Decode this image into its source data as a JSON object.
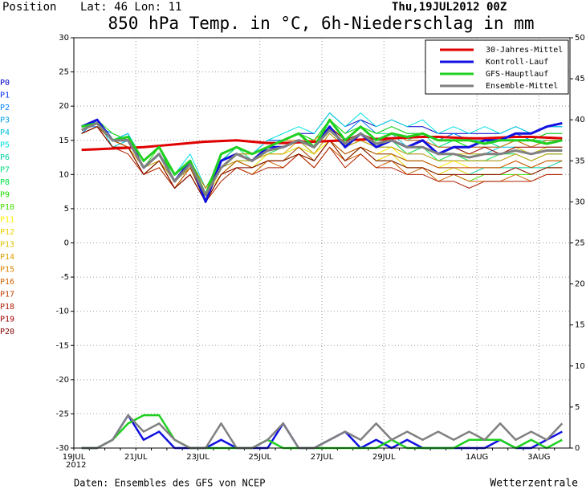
{
  "chart_data": {
    "type": "line",
    "position_label": "Position",
    "location": "Lat: 46  Lon: 11",
    "run": "Thu,19JUL2012 00Z",
    "title": "850 hPa Temp. in °C, 6h-Niederschlag in mm",
    "source": "Daten: Ensembles des GFS von NCEP",
    "brand": "Wetterzentrale",
    "year_label": "2012",
    "categories": [
      "19JUL",
      null,
      null,
      null,
      "21JUL",
      null,
      null,
      null,
      "23JUL",
      null,
      null,
      null,
      "25JUL",
      null,
      null,
      null,
      "27JUL",
      null,
      null,
      null,
      "29JUL",
      null,
      null,
      null,
      null,
      null,
      "1AUG",
      null,
      null,
      null,
      "3AUG",
      null
    ],
    "ylim": [
      -30,
      30
    ],
    "yticks": [
      -30,
      -25,
      -20,
      -15,
      -10,
      -5,
      0,
      5,
      10,
      15,
      20,
      25,
      30
    ],
    "y2lim": [
      0,
      50
    ],
    "y2ticks": [
      0,
      5,
      10,
      15,
      20,
      25,
      30,
      35,
      40,
      45,
      50
    ],
    "grid": true,
    "legend": "top-right",
    "series": [
      {
        "name": "30-Jahres-Mittel",
        "color": "#e00000",
        "values": [
          13.6,
          13.7,
          13.8,
          13.9,
          14.0,
          14.2,
          14.4,
          14.6,
          14.8,
          14.9,
          15.0,
          14.8,
          14.6,
          14.6,
          14.7,
          14.8,
          14.9,
          15.0,
          15.1,
          15.2,
          15.3,
          15.4,
          15.5,
          15.5,
          15.4,
          15.3,
          15.3,
          15.4,
          15.5,
          15.5,
          15.4,
          15.3
        ]
      },
      {
        "name": "Kontroll-Lauf",
        "color": "#1010e0",
        "values": [
          17,
          18,
          15,
          15,
          11,
          13,
          9,
          12,
          6,
          12,
          13,
          12,
          14,
          14,
          15,
          14,
          17,
          14,
          16,
          14,
          15,
          14,
          15,
          13,
          14,
          14,
          15,
          15,
          16,
          16,
          17,
          17.5
        ],
        "precip": [
          0,
          0,
          1,
          4,
          1,
          2,
          0,
          0,
          0,
          1,
          0,
          0,
          0,
          3,
          0,
          0,
          1,
          2,
          0,
          1,
          0,
          1,
          0,
          0,
          0,
          0,
          0,
          1,
          0,
          0,
          1,
          2
        ]
      },
      {
        "name": "GFS-Hauptlauf",
        "color": "#20d020",
        "values": [
          17,
          17.5,
          15,
          15.5,
          12,
          14,
          10,
          12,
          7,
          13,
          14,
          13,
          14,
          15,
          16,
          14,
          18,
          15,
          17,
          15,
          16,
          15.5,
          16,
          15,
          15,
          15,
          14.5,
          15,
          15,
          15,
          14.5,
          15
        ],
        "precip": [
          0,
          0,
          1,
          3,
          4,
          4,
          1,
          0,
          0,
          0,
          0,
          0,
          1,
          0,
          0,
          0,
          0,
          0,
          0,
          0,
          1,
          0,
          0,
          0,
          0,
          1,
          1,
          1,
          0,
          1,
          0,
          1
        ]
      },
      {
        "name": "Ensemble-Mittel",
        "color": "#808080",
        "values": [
          16.5,
          17.5,
          15,
          15,
          11,
          13,
          9,
          11.5,
          7,
          11,
          13,
          12,
          13.5,
          14,
          15,
          14,
          16.5,
          14.5,
          16,
          14.5,
          15,
          14,
          14,
          13,
          13,
          12.5,
          13,
          13,
          13.5,
          13,
          13.5,
          13.5
        ],
        "precip": [
          0,
          0,
          1,
          4,
          2,
          3,
          1,
          0,
          0,
          3,
          0,
          0,
          1,
          3,
          0,
          0,
          1,
          2,
          1,
          3,
          1,
          2,
          1,
          2,
          1,
          2,
          1,
          3,
          1,
          2,
          1,
          3
        ]
      }
    ],
    "members": [
      {
        "name": "P0",
        "color": "#0000c8",
        "values": [
          17,
          18,
          15,
          16,
          11,
          13,
          9,
          12,
          8,
          12,
          14,
          13,
          15,
          15,
          16,
          16,
          19,
          17,
          18,
          17,
          18,
          17,
          17,
          16,
          16,
          16,
          16,
          16,
          17,
          16,
          17,
          17
        ]
      },
      {
        "name": "P1",
        "color": "#0030ff",
        "values": [
          16,
          18,
          15,
          15,
          11,
          13,
          10,
          12,
          7,
          12,
          13,
          12,
          14,
          15,
          16,
          14,
          17,
          15,
          17,
          15,
          16,
          15,
          15,
          14,
          14,
          14,
          14,
          14,
          15,
          14,
          15,
          15
        ]
      },
      {
        "name": "P2",
        "color": "#0080ff",
        "values": [
          17,
          17,
          16,
          15,
          12,
          14,
          9,
          12,
          8,
          12,
          14,
          13,
          15,
          15,
          16,
          15,
          18,
          16,
          18,
          16,
          17,
          16,
          16,
          15,
          16,
          15,
          15,
          15,
          16,
          15,
          16,
          16
        ]
      },
      {
        "name": "P3",
        "color": "#00a0e0",
        "values": [
          16,
          18,
          15,
          14,
          10,
          12,
          9,
          11,
          7,
          11,
          12,
          11,
          13,
          13,
          14,
          13,
          16,
          14,
          15,
          14,
          14,
          13,
          13,
          12,
          12,
          12,
          12,
          12,
          13,
          12,
          13,
          13
        ]
      },
      {
        "name": "P4",
        "color": "#00c0e0",
        "values": [
          17,
          18,
          14,
          15,
          11,
          13,
          9,
          12,
          7,
          11,
          13,
          12,
          14,
          14,
          15,
          14,
          17,
          15,
          16,
          15,
          16,
          14,
          15,
          13,
          14,
          13,
          13,
          14,
          14,
          13,
          14,
          14
        ]
      },
      {
        "name": "P5",
        "color": "#00e0e0",
        "values": [
          17,
          18,
          15,
          16,
          12,
          14,
          10,
          13,
          8,
          12,
          14,
          13,
          15,
          16,
          17,
          16,
          19,
          17,
          19,
          17,
          18,
          17,
          18,
          16,
          17,
          16,
          17,
          16,
          17,
          16,
          17,
          17
        ]
      },
      {
        "name": "P6",
        "color": "#00d0a0",
        "values": [
          16,
          17,
          15,
          14,
          10,
          12,
          8,
          11,
          6,
          10,
          12,
          11,
          12,
          12,
          14,
          12,
          15,
          13,
          14,
          13,
          13,
          12,
          12,
          11,
          11,
          10,
          11,
          11,
          11,
          11,
          11,
          12
        ]
      },
      {
        "name": "P7",
        "color": "#00e080",
        "values": [
          17,
          18,
          15,
          15,
          11,
          13,
          10,
          12,
          7,
          12,
          14,
          12,
          14,
          15,
          16,
          15,
          18,
          16,
          17,
          16,
          16,
          15,
          16,
          14,
          15,
          14,
          15,
          14,
          15,
          15,
          15,
          15
        ]
      },
      {
        "name": "P8",
        "color": "#00e040",
        "values": [
          16,
          17,
          15,
          15,
          11,
          12,
          9,
          11,
          7,
          11,
          12,
          12,
          13,
          14,
          15,
          13,
          16,
          14,
          15,
          14,
          15,
          13,
          14,
          12,
          13,
          12,
          12,
          13,
          13,
          12,
          13,
          13
        ]
      },
      {
        "name": "P9",
        "color": "#20e000",
        "values": [
          17,
          18,
          16,
          15,
          11,
          14,
          9,
          12,
          8,
          12,
          13,
          13,
          14,
          15,
          16,
          15,
          18,
          16,
          17,
          16,
          17,
          16,
          16,
          15,
          15,
          14,
          15,
          15,
          15,
          15,
          16,
          16
        ]
      },
      {
        "name": "P10",
        "color": "#40e000",
        "values": [
          16,
          17,
          14,
          14,
          10,
          12,
          8,
          11,
          6,
          10,
          12,
          11,
          12,
          12,
          13,
          12,
          15,
          12,
          14,
          12,
          12,
          11,
          11,
          10,
          10,
          9,
          10,
          10,
          10,
          10,
          11,
          11
        ]
      },
      {
        "name": "P11",
        "color": "#ffee00",
        "values": [
          16,
          17,
          15,
          14,
          10,
          12,
          8,
          11,
          7,
          10,
          12,
          11,
          13,
          13,
          14,
          13,
          15,
          13,
          14,
          13,
          14,
          12,
          12,
          11,
          12,
          11,
          11,
          11,
          12,
          11,
          12,
          12
        ]
      },
      {
        "name": "P12",
        "color": "#f0d000",
        "values": [
          16,
          17,
          14,
          14,
          10,
          12,
          8,
          10,
          6,
          10,
          11,
          10,
          12,
          12,
          13,
          12,
          15,
          12,
          14,
          12,
          13,
          11,
          11,
          10,
          11,
          10,
          10,
          10,
          11,
          10,
          11,
          11
        ]
      },
      {
        "name": "P13",
        "color": "#e0c000",
        "values": [
          17,
          18,
          15,
          15,
          11,
          13,
          9,
          12,
          7,
          11,
          13,
          12,
          14,
          14,
          15,
          14,
          17,
          15,
          16,
          15,
          15,
          14,
          14,
          13,
          13,
          13,
          13,
          13,
          14,
          13,
          14,
          14
        ]
      },
      {
        "name": "P14",
        "color": "#e0a000",
        "values": [
          16,
          17,
          15,
          14,
          11,
          12,
          9,
          11,
          7,
          11,
          12,
          12,
          13,
          13,
          15,
          13,
          16,
          14,
          15,
          14,
          14,
          13,
          13,
          12,
          12,
          12,
          12,
          12,
          13,
          12,
          13,
          13
        ]
      },
      {
        "name": "P15",
        "color": "#e08000",
        "values": [
          17,
          18,
          15,
          15,
          11,
          13,
          9,
          12,
          8,
          11,
          13,
          13,
          14,
          15,
          15,
          15,
          17,
          15,
          17,
          15,
          16,
          15,
          15,
          14,
          14,
          14,
          14,
          14,
          15,
          14,
          15,
          15
        ]
      },
      {
        "name": "P16",
        "color": "#d06000",
        "values": [
          16,
          17,
          14,
          14,
          10,
          11,
          8,
          10,
          6,
          10,
          11,
          10,
          12,
          11,
          13,
          11,
          14,
          12,
          13,
          11,
          12,
          10,
          11,
          9,
          10,
          9,
          9,
          9,
          10,
          9,
          10,
          10
        ]
      },
      {
        "name": "P17",
        "color": "#c04000",
        "values": [
          16,
          17,
          15,
          14,
          10,
          12,
          8,
          11,
          6,
          10,
          12,
          11,
          12,
          12,
          14,
          12,
          15,
          13,
          14,
          13,
          13,
          12,
          12,
          11,
          11,
          11,
          11,
          11,
          12,
          11,
          12,
          12
        ]
      },
      {
        "name": "P18",
        "color": "#b02000",
        "values": [
          16,
          17,
          14,
          13,
          10,
          11,
          8,
          10,
          6,
          9,
          11,
          10,
          11,
          11,
          13,
          11,
          14,
          11,
          13,
          11,
          11,
          10,
          10,
          9,
          9,
          8,
          9,
          9,
          9,
          9,
          10,
          10
        ]
      },
      {
        "name": "P19",
        "color": "#a00000",
        "values": [
          17,
          18,
          15,
          15,
          11,
          13,
          9,
          12,
          7,
          12,
          13,
          12,
          14,
          14,
          15,
          14,
          17,
          15,
          16,
          15,
          15,
          14,
          15,
          13,
          14,
          13,
          14,
          13,
          14,
          14,
          14,
          14
        ]
      },
      {
        "name": "P20",
        "color": "#800000",
        "values": [
          16,
          17,
          14,
          14,
          10,
          12,
          8,
          10,
          6,
          10,
          11,
          11,
          12,
          12,
          13,
          12,
          15,
          12,
          14,
          12,
          12,
          11,
          11,
          10,
          10,
          10,
          10,
          10,
          11,
          10,
          11,
          11
        ]
      }
    ]
  }
}
